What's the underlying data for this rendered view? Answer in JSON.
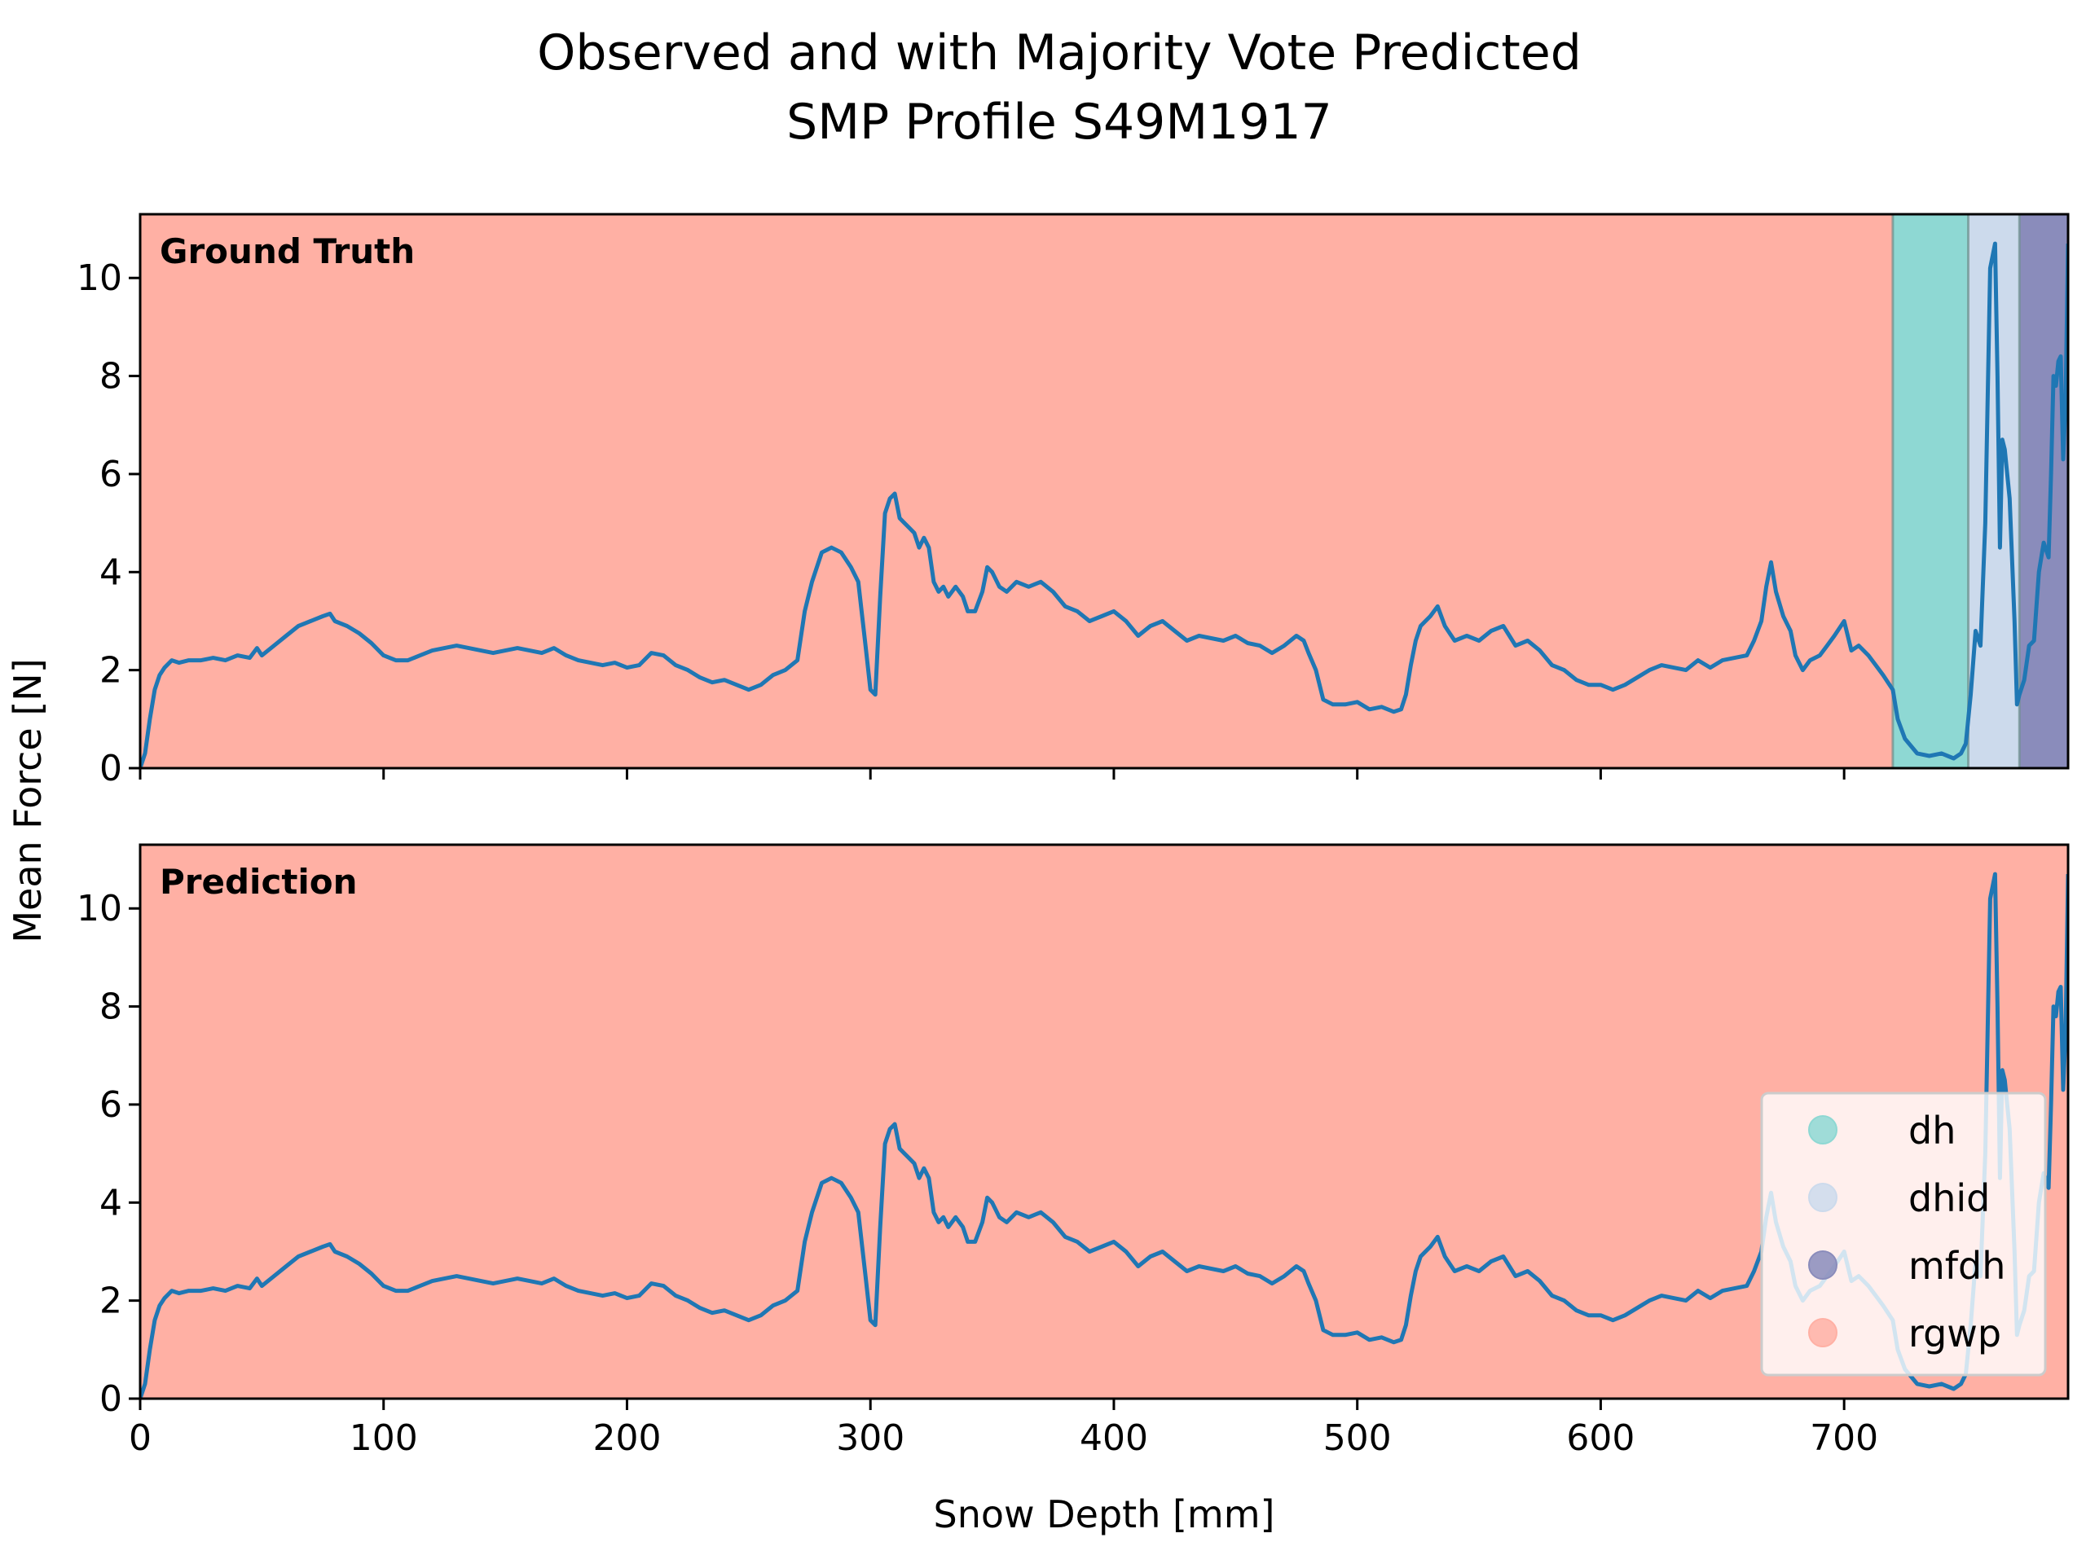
{
  "chart_data": {
    "type": "line",
    "title": "Observed and with Majority Vote Predicted",
    "subtitle": "SMP Profile S49M1917",
    "xlabel": "Snow Depth [mm]",
    "ylabel": "Mean Force [N]",
    "xlim": [
      0,
      792
    ],
    "ylim": [
      0,
      11.3
    ],
    "xticks": [
      0,
      100,
      200,
      300,
      400,
      500,
      600,
      700
    ],
    "yticks": [
      0,
      2,
      4,
      6,
      8,
      10
    ],
    "grid": false,
    "legend_position": "lower-right",
    "classes": [
      {
        "name": "dh",
        "color": "#8ed8d3"
      },
      {
        "name": "dhid",
        "color": "#ccdaec"
      },
      {
        "name": "mfdh",
        "color": "#8a8cbb"
      },
      {
        "name": "rgwp",
        "color": "#ffb0a4"
      }
    ],
    "line_color": "#1f77b4",
    "panels": [
      {
        "label": "Ground Truth",
        "segments": [
          {
            "class": "rgwp",
            "start": 0,
            "end": 720
          },
          {
            "class": "dh",
            "start": 720,
            "end": 751
          },
          {
            "class": "dhid",
            "start": 751,
            "end": 772
          },
          {
            "class": "mfdh",
            "start": 772,
            "end": 792
          }
        ]
      },
      {
        "label": "Prediction",
        "segments": [
          {
            "class": "rgwp",
            "start": 0,
            "end": 792
          }
        ]
      }
    ],
    "series": [
      {
        "x": [
          0,
          2,
          4,
          6,
          8,
          10,
          13,
          16,
          20,
          25,
          30,
          35,
          40,
          45,
          48,
          50,
          55,
          60,
          65,
          70,
          75,
          78,
          80,
          85,
          90,
          95,
          100,
          105,
          110,
          115,
          120,
          125,
          130,
          135,
          140,
          145,
          150,
          155,
          160,
          165,
          170,
          175,
          180,
          185,
          190,
          195,
          200,
          205,
          210,
          215,
          220,
          225,
          230,
          235,
          240,
          245,
          250,
          255,
          260,
          265,
          270,
          273,
          276,
          280,
          284,
          288,
          292,
          295,
          298,
          300,
          302,
          304,
          306,
          308,
          310,
          312,
          314,
          316,
          318,
          320,
          322,
          324,
          326,
          328,
          330,
          332,
          335,
          338,
          340,
          343,
          346,
          348,
          350,
          353,
          356,
          360,
          365,
          370,
          375,
          380,
          385,
          390,
          395,
          400,
          405,
          410,
          415,
          420,
          425,
          430,
          435,
          440,
          445,
          450,
          455,
          460,
          465,
          470,
          475,
          478,
          480,
          483,
          486,
          490,
          495,
          500,
          505,
          510,
          515,
          518,
          520,
          522,
          524,
          526,
          528,
          530,
          533,
          536,
          540,
          545,
          550,
          555,
          560,
          565,
          570,
          575,
          580,
          585,
          590,
          595,
          600,
          605,
          610,
          615,
          620,
          625,
          630,
          635,
          640,
          645,
          650,
          655,
          660,
          663,
          666,
          668,
          670,
          672,
          675,
          678,
          680,
          683,
          686,
          690,
          693,
          696,
          700,
          703,
          706,
          710,
          713,
          716,
          720,
          722,
          725,
          730,
          735,
          740,
          745,
          748,
          750,
          752,
          754,
          756,
          758,
          760,
          762,
          763,
          764,
          765,
          766,
          768,
          770,
          771,
          772,
          774,
          776,
          778,
          780,
          782,
          784,
          785,
          786,
          787,
          788,
          789,
          790,
          791,
          792
        ],
        "y": [
          0,
          0.3,
          1.0,
          1.6,
          1.9,
          2.05,
          2.2,
          2.15,
          2.2,
          2.2,
          2.25,
          2.2,
          2.3,
          2.25,
          2.45,
          2.3,
          2.5,
          2.7,
          2.9,
          3.0,
          3.1,
          3.15,
          3.0,
          2.9,
          2.75,
          2.55,
          2.3,
          2.2,
          2.2,
          2.3,
          2.4,
          2.45,
          2.5,
          2.45,
          2.4,
          2.35,
          2.4,
          2.45,
          2.4,
          2.35,
          2.45,
          2.3,
          2.2,
          2.15,
          2.1,
          2.15,
          2.05,
          2.1,
          2.35,
          2.3,
          2.1,
          2.0,
          1.85,
          1.75,
          1.8,
          1.7,
          1.6,
          1.7,
          1.9,
          2.0,
          2.2,
          3.2,
          3.8,
          4.4,
          4.5,
          4.4,
          4.1,
          3.8,
          2.5,
          1.6,
          1.5,
          3.5,
          5.2,
          5.5,
          5.6,
          5.1,
          5.0,
          4.9,
          4.8,
          4.5,
          4.7,
          4.5,
          3.8,
          3.6,
          3.7,
          3.5,
          3.7,
          3.5,
          3.2,
          3.2,
          3.6,
          4.1,
          4.0,
          3.7,
          3.6,
          3.8,
          3.7,
          3.8,
          3.6,
          3.3,
          3.2,
          3.0,
          3.1,
          3.2,
          3.0,
          2.7,
          2.9,
          3.0,
          2.8,
          2.6,
          2.7,
          2.65,
          2.6,
          2.7,
          2.55,
          2.5,
          2.35,
          2.5,
          2.7,
          2.6,
          2.35,
          2.0,
          1.4,
          1.3,
          1.3,
          1.35,
          1.2,
          1.25,
          1.15,
          1.2,
          1.5,
          2.1,
          2.6,
          2.9,
          3.0,
          3.1,
          3.3,
          2.9,
          2.6,
          2.7,
          2.6,
          2.8,
          2.9,
          2.5,
          2.6,
          2.4,
          2.1,
          2.0,
          1.8,
          1.7,
          1.7,
          1.6,
          1.7,
          1.85,
          2.0,
          2.1,
          2.05,
          2.0,
          2.2,
          2.05,
          2.2,
          2.25,
          2.3,
          2.6,
          3.0,
          3.7,
          4.2,
          3.6,
          3.1,
          2.8,
          2.3,
          2.0,
          2.2,
          2.3,
          2.5,
          2.7,
          3.0,
          2.4,
          2.5,
          2.3,
          2.1,
          1.9,
          1.6,
          1.0,
          0.6,
          0.3,
          0.25,
          0.3,
          0.2,
          0.3,
          0.5,
          1.5,
          2.8,
          2.5,
          5.0,
          10.2,
          10.7,
          8.0,
          4.5,
          6.7,
          6.5,
          5.5,
          3.0,
          1.3,
          1.5,
          1.8,
          2.5,
          2.6,
          4.0,
          4.6,
          4.3,
          6.0,
          8.0,
          7.8,
          8.3,
          8.4,
          6.3,
          7.5,
          10.7
        ]
      }
    ]
  }
}
